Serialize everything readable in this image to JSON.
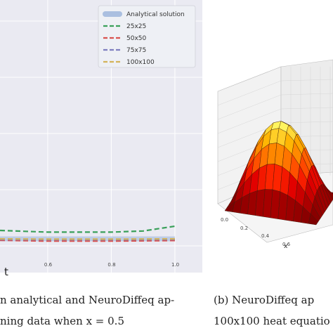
{
  "chart_data": [
    {
      "type": "line",
      "xlabel": "t",
      "x_ticks": [
        "0.6",
        "0.8",
        "1.0"
      ],
      "xlim": [
        0.45,
        1.02
      ],
      "legend_position": "top-right",
      "grid": true,
      "series": [
        {
          "name": "Analytical solution",
          "color": "#aabfe0",
          "style": "solid-thick",
          "x": [
            0.45,
            0.6,
            0.8,
            1.0
          ],
          "y": [
            0.0,
            0.0,
            0.0,
            0.0
          ]
        },
        {
          "name": "25x25",
          "color": "#3aa05a",
          "style": "dashed",
          "x": [
            0.45,
            0.6,
            0.8,
            0.9,
            1.0
          ],
          "y": [
            0.3,
            0.24,
            0.24,
            0.28,
            0.45
          ]
        },
        {
          "name": "50x50",
          "color": "#d9534f",
          "style": "dashed",
          "x": [
            0.45,
            0.6,
            0.8,
            1.0
          ],
          "y": [
            -0.05,
            -0.08,
            -0.08,
            -0.06
          ]
        },
        {
          "name": "75x75",
          "color": "#7f7fc0",
          "style": "dashed",
          "x": [
            0.45,
            0.6,
            0.8,
            1.0
          ],
          "y": [
            -0.02,
            -0.03,
            -0.03,
            -0.02
          ]
        },
        {
          "name": "100x100",
          "color": "#d4b35a",
          "style": "dashed",
          "x": [
            0.45,
            0.6,
            0.8,
            1.0
          ],
          "y": [
            0.0,
            -0.01,
            -0.01,
            0.0
          ]
        }
      ]
    },
    {
      "type": "surface",
      "xlabel": "x",
      "x_ticks": [
        "0.0",
        "0.2",
        "0.4",
        "0.6"
      ],
      "colormap": "hot"
    }
  ],
  "captions": {
    "left_line1": "n analytical and NeuroDiffeq ap-",
    "left_line2": "ning data when x = 0.5",
    "right_line1": "(b)  NeuroDiffeq  ap",
    "right_line2": "100x100 heat equatio"
  }
}
